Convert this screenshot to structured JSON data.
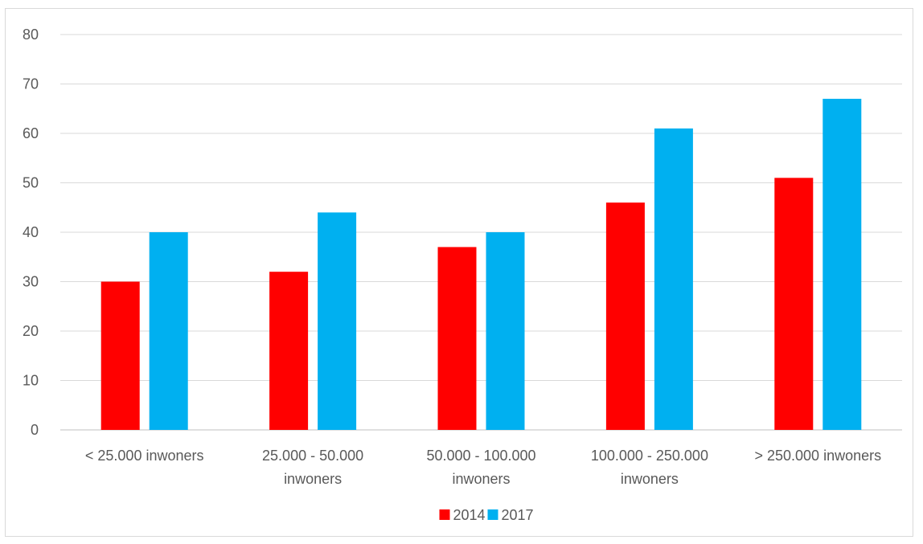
{
  "chart_data": {
    "type": "bar",
    "title": "",
    "xlabel": "",
    "ylabel": "",
    "categories": [
      [
        "< 25.000 inwoners"
      ],
      [
        "25.000 - 50.000",
        "inwoners"
      ],
      [
        "50.000 - 100.000",
        "inwoners"
      ],
      [
        "100.000 - 250.000",
        "inwoners"
      ],
      [
        "> 250.000 inwoners"
      ]
    ],
    "series": [
      {
        "name": "2014",
        "color": "#ff0000",
        "values": [
          30,
          32,
          37,
          46,
          51
        ]
      },
      {
        "name": "2017",
        "color": "#00b0f0",
        "values": [
          40,
          44,
          40,
          61,
          67
        ]
      }
    ],
    "ylim": [
      0,
      80
    ],
    "yticks": [
      0,
      10,
      20,
      30,
      40,
      50,
      60,
      70,
      80
    ],
    "grid": true,
    "legend": "bottom-center"
  }
}
